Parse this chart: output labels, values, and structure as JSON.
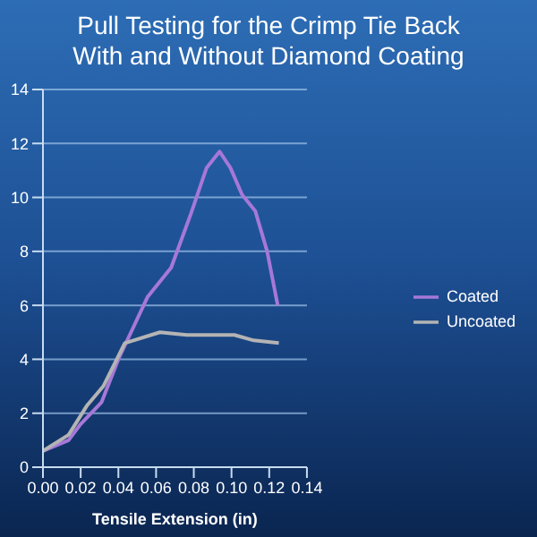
{
  "chart_data": {
    "type": "line",
    "title": "Pull Testing for the Crimp Tie Back\nWith and Without Diamond Coating",
    "xlabel": "Tensile Extension (in)",
    "series": [
      {
        "name": "Coated",
        "color": "#a678d8",
        "x": [
          0,
          0.0136,
          0.02,
          0.031,
          0.04,
          0.0554,
          0.068,
          0.0785,
          0.0868,
          0.0937,
          0.0994,
          0.1056,
          0.1126,
          0.1189,
          0.1245
        ],
        "values": [
          0.6,
          1.0,
          1.6,
          2.4,
          4.0,
          6.3,
          7.4,
          9.4,
          11.1,
          11.7,
          11.1,
          10.1,
          9.5,
          8.0,
          6.0
        ]
      },
      {
        "name": "Uncoated",
        "color": "#b4b4b4",
        "x": [
          0,
          0.0136,
          0.0235,
          0.032,
          0.0434,
          0.062,
          0.0763,
          0.0868,
          0.0937,
          0.1015,
          0.1118,
          0.1251
        ],
        "values": [
          0.6,
          1.2,
          2.3,
          3.0,
          4.6,
          5.0,
          4.9,
          4.9,
          4.9,
          4.9,
          4.7,
          4.6
        ]
      }
    ],
    "xlim": [
      0,
      0.14
    ],
    "xticks": [
      {
        "value": 0,
        "label": "0.00"
      },
      {
        "value": 0.02,
        "label": "0.02"
      },
      {
        "value": 0.04,
        "label": "0.04"
      },
      {
        "value": 0.06,
        "label": "0.06"
      },
      {
        "value": 0.08,
        "label": "0.08"
      },
      {
        "value": 0.1,
        "label": "0.10"
      },
      {
        "value": 0.12,
        "label": "0.12"
      },
      {
        "value": 0.14,
        "label": "0.14"
      }
    ],
    "ylim": [
      0,
      14
    ],
    "yticks": [
      0,
      2,
      4,
      6,
      8,
      10,
      12,
      14
    ],
    "grid": "y",
    "legend": "right",
    "marker": "none",
    "line_style": "solid"
  }
}
